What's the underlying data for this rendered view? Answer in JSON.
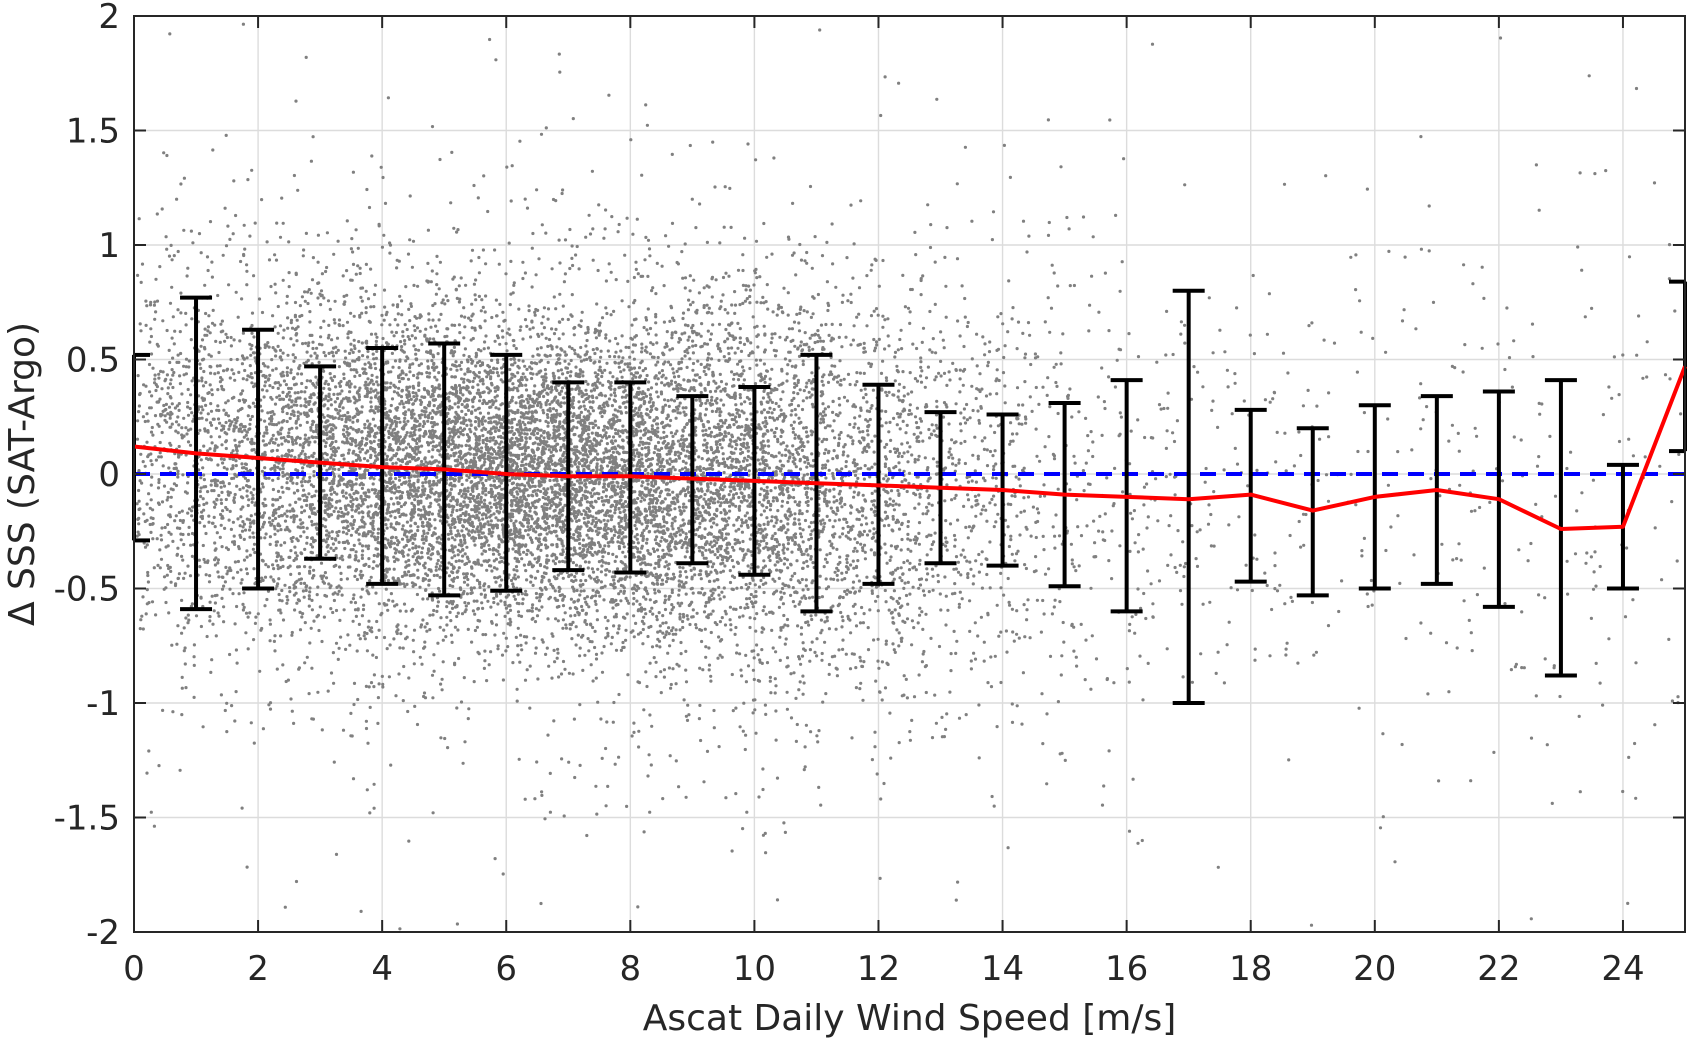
{
  "chart_data": {
    "type": "scatter",
    "xlabel": "Ascat Daily Wind Speed [m/s]",
    "ylabel": "Δ SSS (SAT-Argo)",
    "xlim": [
      0,
      25
    ],
    "ylim": [
      -2,
      2
    ],
    "x_ticks": [
      0,
      2,
      4,
      6,
      8,
      10,
      12,
      14,
      16,
      18,
      20,
      22,
      24
    ],
    "x_tick_labels": [
      "0",
      "2",
      "4",
      "6",
      "8",
      "10",
      "12",
      "14",
      "16",
      "18",
      "20",
      "22",
      "24"
    ],
    "y_ticks": [
      -2,
      -1.5,
      -1,
      -0.5,
      0,
      0.5,
      1,
      1.5,
      2
    ],
    "y_tick_labels": [
      "-2",
      "-1.5",
      "-1",
      "-0.5",
      "0",
      "0.5",
      "1",
      "1.5",
      "2"
    ],
    "grid": true,
    "legend": "none",
    "reference_line": {
      "y": 0,
      "style": "dashed",
      "color": "#0000ff"
    },
    "scatter_color": "#808080",
    "mean_line": {
      "color": "#ff0000",
      "x": [
        0,
        1,
        2,
        3,
        4,
        5,
        6,
        7,
        8,
        9,
        10,
        11,
        12,
        13,
        14,
        15,
        16,
        17,
        18,
        19,
        20,
        21,
        22,
        23,
        24,
        25
      ],
      "y": [
        0.12,
        0.09,
        0.07,
        0.05,
        0.03,
        0.02,
        0.0,
        -0.01,
        -0.01,
        -0.02,
        -0.03,
        -0.04,
        -0.05,
        -0.06,
        -0.07,
        -0.09,
        -0.1,
        -0.11,
        -0.09,
        -0.16,
        -0.1,
        -0.07,
        -0.11,
        -0.24,
        -0.23,
        0.47
      ]
    },
    "error_bars": {
      "color": "#000000",
      "x": [
        0,
        1,
        2,
        3,
        4,
        5,
        6,
        7,
        8,
        9,
        10,
        11,
        12,
        13,
        14,
        15,
        16,
        17,
        18,
        19,
        20,
        21,
        22,
        23,
        24,
        25
      ],
      "upper": [
        0.52,
        0.77,
        0.63,
        0.47,
        0.55,
        0.57,
        0.52,
        0.4,
        0.4,
        0.34,
        0.38,
        0.52,
        0.39,
        0.27,
        0.26,
        0.31,
        0.41,
        0.8,
        0.28,
        0.2,
        0.3,
        0.34,
        0.36,
        0.41,
        0.04,
        0.84
      ],
      "lower": [
        -0.29,
        -0.59,
        -0.5,
        -0.37,
        -0.48,
        -0.53,
        -0.51,
        -0.42,
        -0.43,
        -0.39,
        -0.44,
        -0.6,
        -0.48,
        -0.39,
        -0.4,
        -0.49,
        -0.6,
        -1.0,
        -0.47,
        -0.53,
        -0.5,
        -0.48,
        -0.58,
        -0.88,
        -0.5,
        0.1
      ]
    }
  }
}
